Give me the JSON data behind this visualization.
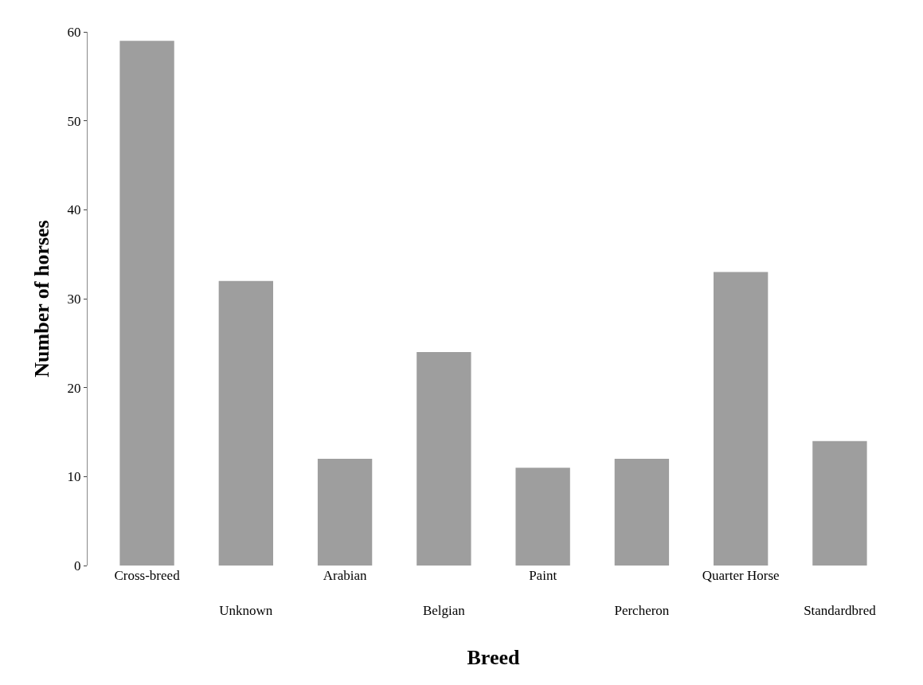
{
  "chart_data": {
    "type": "bar",
    "xlabel": "Breed",
    "ylabel": "Number of horses",
    "categories": [
      "Cross-breed",
      "Unknown",
      "Arabian",
      "Belgian",
      "Paint",
      "Percheron",
      "Quarter Horse",
      "Standardbred"
    ],
    "values": [
      59,
      32,
      12,
      24,
      11,
      12,
      33,
      14
    ],
    "color": "#9e9e9e",
    "ylim": [
      0,
      60
    ],
    "yticks": [
      0,
      10,
      20,
      30,
      40,
      50,
      60
    ],
    "legend": false
  }
}
